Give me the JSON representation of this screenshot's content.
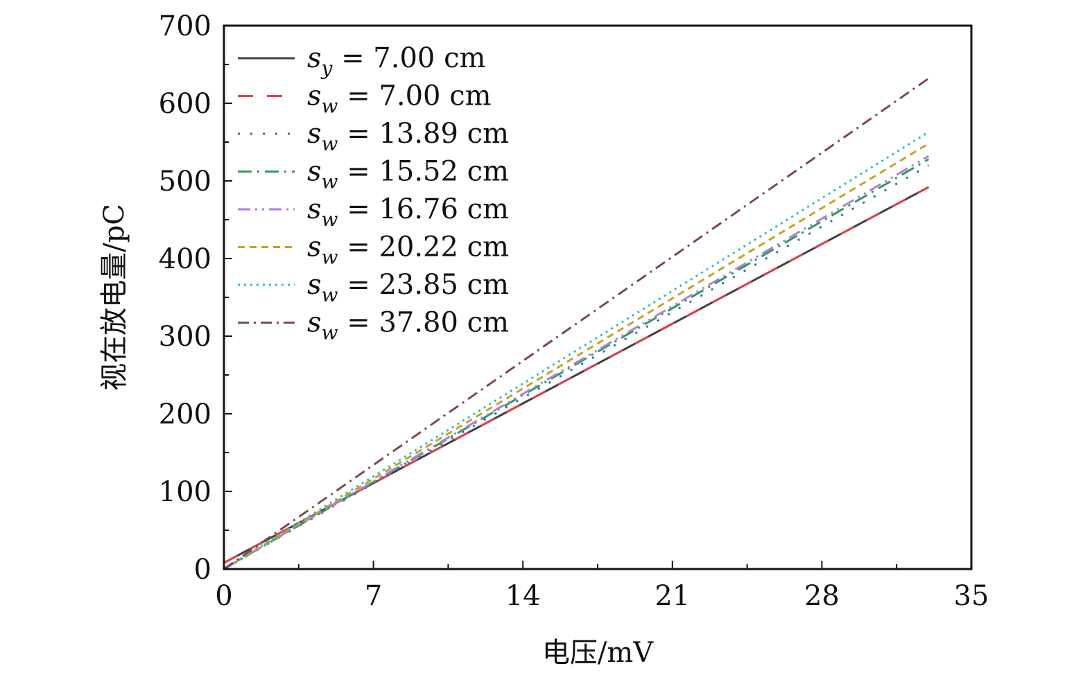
{
  "chart_data": {
    "type": "line",
    "title": "",
    "xlabel": "电压/mV",
    "ylabel": "视在放电量/pC",
    "xlim": [
      0,
      35
    ],
    "ylim": [
      0,
      700
    ],
    "x_ticks": [
      "0",
      "7",
      "14",
      "21",
      "28",
      "35"
    ],
    "y_ticks": [
      "0",
      "100",
      "200",
      "300",
      "400",
      "500",
      "600",
      "700"
    ],
    "grid": false,
    "legend_position": "top-left",
    "series": [
      {
        "name": "s_y = 7.00 cm",
        "sym": "s",
        "sub": "y",
        "eq": " = 7.00 cm",
        "color": "#3f3f3f",
        "dash": "none",
        "width": 3,
        "x": [
          0,
          33
        ],
        "y": [
          8,
          492
        ]
      },
      {
        "name": "s_w = 7.00 cm",
        "sym": "s",
        "sub": "w",
        "eq": " = 7.00 cm",
        "color": "#e0404a",
        "dash": "22,20",
        "width": 3,
        "x": [
          0,
          33
        ],
        "y": [
          8,
          492
        ]
      },
      {
        "name": "s_w = 13.89 cm",
        "sym": "s",
        "sub": "w",
        "eq": " = 13.89 cm",
        "color": "#2f6fb5",
        "dash": "3,15",
        "width": 3,
        "x": [
          0,
          33
        ],
        "y": [
          0,
          520
        ]
      },
      {
        "name": "s_w = 15.52 cm",
        "sym": "s",
        "sub": "w",
        "eq": " = 15.52 cm",
        "color": "#2e9a5a",
        "dash": "20,8,3,8",
        "width": 3,
        "x": [
          0,
          33
        ],
        "y": [
          0,
          528
        ]
      },
      {
        "name": "s_w = 16.76 cm",
        "sym": "s",
        "sub": "w",
        "eq": " = 16.76 cm",
        "color": "#b07fdc",
        "dash": "18,7,3,7,3,7",
        "width": 3,
        "x": [
          0,
          33
        ],
        "y": [
          0,
          532
        ]
      },
      {
        "name": "s_w = 20.22 cm",
        "sym": "s",
        "sub": "w",
        "eq": " = 20.22 cm",
        "color": "#c9a21e",
        "dash": "10,7",
        "width": 3,
        "x": [
          0,
          33
        ],
        "y": [
          0,
          548
        ]
      },
      {
        "name": "s_w = 23.85 cm",
        "sym": "s",
        "sub": "w",
        "eq": " = 23.85 cm",
        "color": "#2bbcd0",
        "dash": "3,6",
        "width": 3,
        "x": [
          0,
          33
        ],
        "y": [
          0,
          563
        ]
      },
      {
        "name": "s_w = 37.80 cm",
        "sym": "s",
        "sub": "w",
        "eq": " = 37.80 cm",
        "color": "#7b4a4a",
        "dash": "16,7,3,7",
        "width": 3,
        "x": [
          0,
          33
        ],
        "y": [
          0,
          632
        ]
      }
    ]
  }
}
